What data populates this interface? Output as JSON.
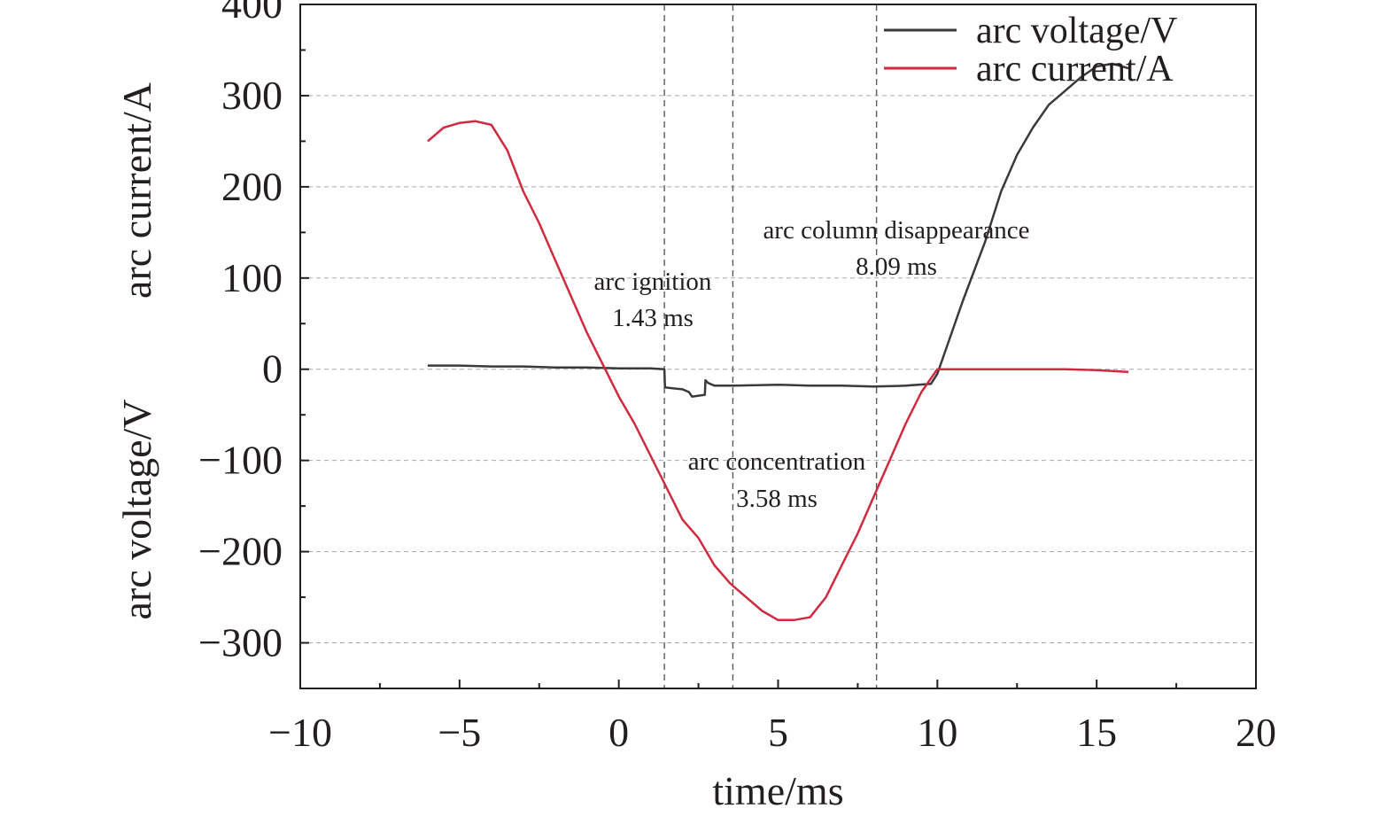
{
  "chart_data": {
    "type": "line",
    "xlabel": "time/ms",
    "ylabel_top": "arc current/A",
    "ylabel_bottom": "arc voltage/V",
    "xlim": [
      -10,
      20
    ],
    "ylim": [
      -350,
      400
    ],
    "xticks": [
      -10,
      -5,
      0,
      5,
      10,
      15,
      20
    ],
    "xtick_labels": [
      "−10",
      "−5",
      "0",
      "5",
      "10",
      "15",
      "20"
    ],
    "yticks": [
      400,
      300,
      200,
      100,
      0,
      -100,
      -200,
      -300
    ],
    "ytick_labels": [
      "400",
      "300",
      "200",
      "100",
      "0",
      "−100",
      "−200",
      "−300"
    ],
    "grid": true,
    "legend": "top-right",
    "series": [
      {
        "name": "arc voltage/V",
        "color": "#3a3a3e",
        "x": [
          -6,
          -5,
          -4,
          -3,
          -2,
          -1,
          0,
          1,
          1.43,
          1.45,
          2.0,
          2.2,
          2.3,
          2.7,
          2.72,
          2.8,
          3.0,
          3.6,
          5,
          6,
          7,
          8,
          9,
          9.8,
          10.0,
          10.3,
          10.8,
          11.5,
          12,
          12.5,
          13,
          13.5,
          14,
          14.5,
          15,
          15.5,
          16
        ],
        "y": [
          4,
          4,
          3,
          3,
          2,
          2,
          1,
          1,
          0,
          -20,
          -22,
          -25,
          -30,
          -28,
          -12,
          -15,
          -18,
          -18,
          -17,
          -18,
          -18,
          -19,
          -18,
          -16,
          -5,
          25,
          75,
          140,
          195,
          235,
          265,
          290,
          305,
          320,
          332,
          335,
          330
        ]
      },
      {
        "name": "arc current/A",
        "color": "#cf2a3f",
        "x": [
          -6,
          -5.5,
          -5,
          -4.5,
          -4,
          -3.5,
          -3,
          -2.5,
          -2,
          -1.5,
          -1,
          -0.5,
          0,
          0.5,
          1,
          1.5,
          2,
          2.5,
          3,
          3.5,
          4,
          4.5,
          5,
          5.5,
          6,
          6.5,
          7,
          7.5,
          8,
          8.5,
          9,
          9.5,
          9.9,
          10.0,
          11,
          12,
          13,
          14,
          15,
          16
        ],
        "y": [
          250,
          265,
          270,
          272,
          268,
          240,
          195,
          160,
          120,
          80,
          40,
          5,
          -30,
          -60,
          -95,
          -130,
          -165,
          -185,
          -215,
          -235,
          -250,
          -265,
          -275,
          -275,
          -272,
          -250,
          -215,
          -180,
          -140,
          -100,
          -60,
          -25,
          -5,
          0,
          0,
          0,
          0,
          0,
          -1,
          -3
        ]
      }
    ],
    "markers": [
      {
        "x": 1.43,
        "label": "arc ignition",
        "value": "1.43 ms"
      },
      {
        "x": 3.58,
        "label": "arc concentration",
        "value": "3.58 ms"
      },
      {
        "x": 8.09,
        "label": "arc column disappearance",
        "value": "8.09 ms"
      }
    ]
  }
}
